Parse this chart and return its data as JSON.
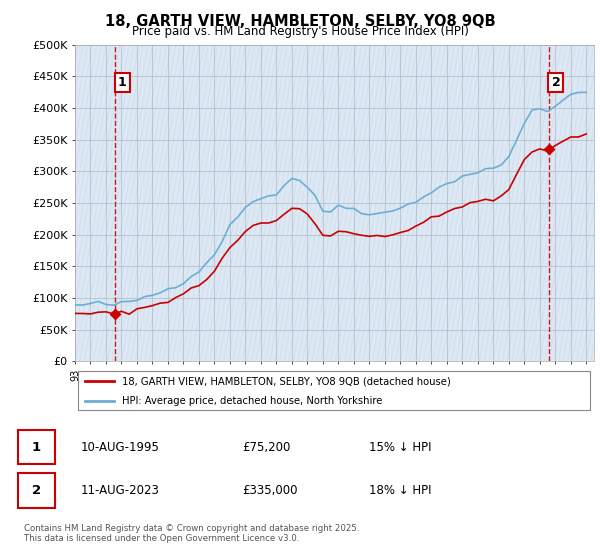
{
  "title_line1": "18, GARTH VIEW, HAMBLETON, SELBY, YO8 9QB",
  "title_line2": "Price paid vs. HM Land Registry's House Price Index (HPI)",
  "ylim": [
    0,
    500000
  ],
  "yticks": [
    0,
    50000,
    100000,
    150000,
    200000,
    250000,
    300000,
    350000,
    400000,
    450000,
    500000
  ],
  "ytick_labels": [
    "£0",
    "£50K",
    "£100K",
    "£150K",
    "£200K",
    "£250K",
    "£300K",
    "£350K",
    "£400K",
    "£450K",
    "£500K"
  ],
  "hpi_color": "#6baed6",
  "price_color": "#cc0000",
  "bg_color": "#dce9f5",
  "grid_color": "#aaaacc",
  "hatch_color": "#bbbbcc",
  "vline_color": "#cc0000",
  "legend_entry1": "18, GARTH VIEW, HAMBLETON, SELBY, YO8 9QB (detached house)",
  "legend_entry2": "HPI: Average price, detached house, North Yorkshire",
  "table_row1": [
    "1",
    "10-AUG-1995",
    "£75,200",
    "15% ↓ HPI"
  ],
  "table_row2": [
    "2",
    "11-AUG-2023",
    "£335,000",
    "18% ↓ HPI"
  ],
  "footer": "Contains HM Land Registry data © Crown copyright and database right 2025.\nThis data is licensed under the Open Government Licence v3.0.",
  "sale1_x": 1995.61,
  "sale1_y": 75200,
  "sale2_x": 2023.61,
  "sale2_y": 335000,
  "xlim_left": 1993.0,
  "xlim_right": 2026.5
}
